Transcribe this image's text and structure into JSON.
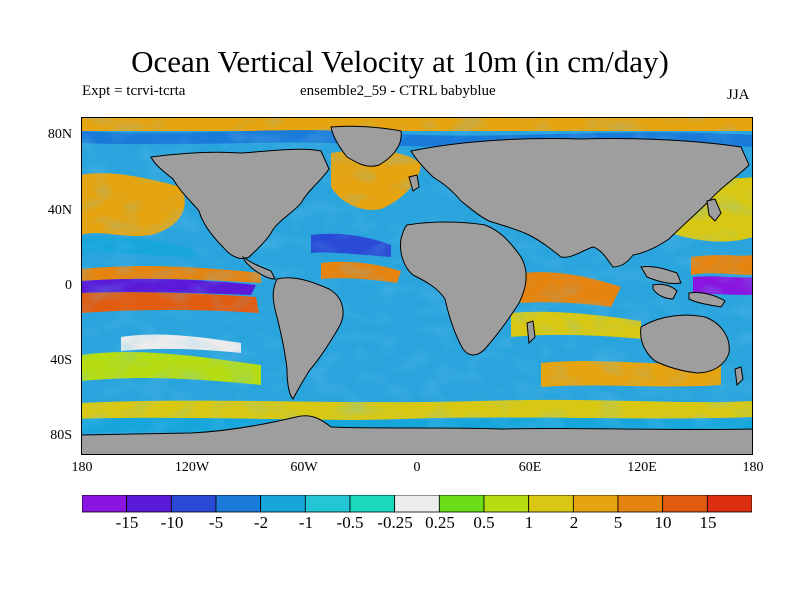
{
  "title": "Ocean Vertical Velocity at 10m (in cm/day)",
  "expt_label": "Expt = tcrvi-tcrta",
  "ensemble_label": "ensemble2_59 - CTRL babyblue",
  "season": "JJA",
  "y_ticks": [
    "80N",
    "40N",
    "0",
    "40S",
    "80S"
  ],
  "x_ticks": [
    "180",
    "120W",
    "60W",
    "0",
    "60E",
    "120E",
    "180"
  ],
  "colors": {
    "land": "#9e9e9e",
    "ocean_background": "#2aa4dd",
    "bins": [
      "#8a14e0",
      "#5a1ad8",
      "#2a4ad6",
      "#1a7ad8",
      "#16a6dc",
      "#22c6d4",
      "#1ad8bc",
      "#ececec",
      "#6adc18",
      "#b6dc14",
      "#d8c814",
      "#e6a410",
      "#e68410",
      "#e25c10",
      "#dc3010"
    ]
  },
  "colorbar_labels": [
    "-15",
    "-10",
    "-5",
    "-2",
    "-1",
    "-0.5",
    "-0.25",
    "0.25",
    "0.5",
    "1",
    "2",
    "5",
    "10",
    "15"
  ]
}
